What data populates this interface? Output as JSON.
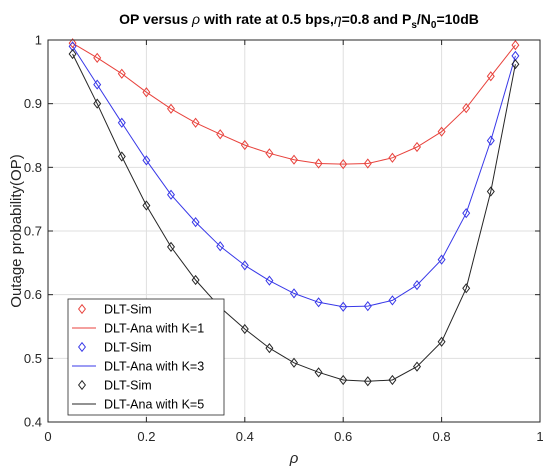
{
  "chart_data": {
    "type": "line",
    "title": {
      "prefix": "OP versus ",
      "rho": "ρ",
      "middle": " with rate at 0.5 bps,",
      "eta": "η",
      "after_eta": "=0.8 and P",
      "sub_s": "s",
      "slash": "/N",
      "sub_0": "0",
      "tail": "=10dB"
    },
    "xlabel": "ρ",
    "ylabel": "Outage probability(OP)",
    "xlim": [
      0,
      1
    ],
    "ylim": [
      0.4,
      1
    ],
    "xticks": [
      0,
      0.2,
      0.4,
      0.6,
      0.8,
      1
    ],
    "xtick_labels": [
      "0",
      "0.2",
      "0.4",
      "0.6",
      "0.8",
      "1"
    ],
    "yticks": [
      0.4,
      0.5,
      0.6,
      0.7,
      0.8,
      0.9,
      1
    ],
    "ytick_labels": [
      "0.4",
      "0.5",
      "0.6",
      "0.7",
      "0.8",
      "0.9",
      "1"
    ],
    "grid": true,
    "legend_position": "bottom-left",
    "x": [
      0.05,
      0.1,
      0.15,
      0.2,
      0.25,
      0.3,
      0.35,
      0.4,
      0.45,
      0.5,
      0.55,
      0.6,
      0.65,
      0.7,
      0.75,
      0.8,
      0.85,
      0.9,
      0.95
    ],
    "series": [
      {
        "sim_name": "DLT-Sim",
        "ana_name": "DLT-Ana with K=1",
        "color": "#e8423c",
        "values": [
          0.995,
          0.972,
          0.947,
          0.918,
          0.892,
          0.87,
          0.852,
          0.835,
          0.822,
          0.812,
          0.806,
          0.805,
          0.806,
          0.815,
          0.832,
          0.856,
          0.893,
          0.943,
          0.992
        ]
      },
      {
        "sim_name": "DLT-Sim",
        "ana_name": "DLT-Ana with K=3",
        "color": "#3838e8",
        "values": [
          0.99,
          0.93,
          0.87,
          0.811,
          0.757,
          0.714,
          0.676,
          0.646,
          0.622,
          0.602,
          0.588,
          0.581,
          0.582,
          0.591,
          0.615,
          0.655,
          0.728,
          0.842,
          0.975
        ]
      },
      {
        "sim_name": "DLT-Sim",
        "ana_name": "DLT-Ana with K=5",
        "color": "#262626",
        "values": [
          0.978,
          0.9,
          0.817,
          0.74,
          0.675,
          0.623,
          0.58,
          0.546,
          0.516,
          0.493,
          0.478,
          0.466,
          0.464,
          0.466,
          0.487,
          0.526,
          0.61,
          0.762,
          0.962
        ]
      }
    ]
  }
}
